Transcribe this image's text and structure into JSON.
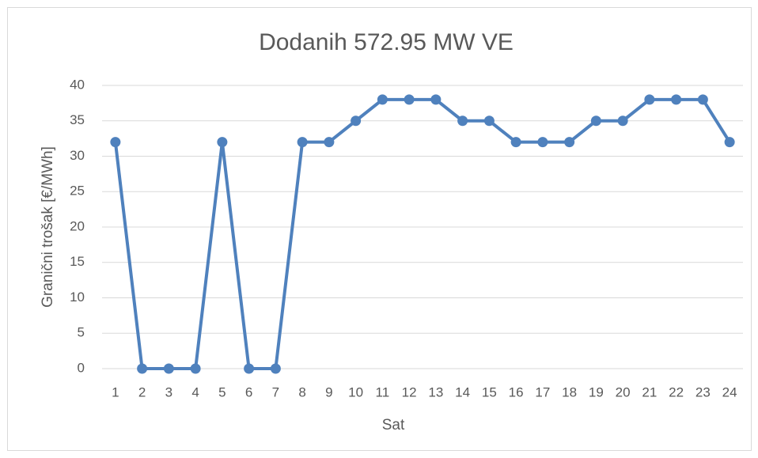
{
  "chart_data": {
    "type": "line",
    "title": "Dodanih 572.95 MW VE",
    "x_label": "Sat",
    "y_label": "Granični trošak [€/MWh]",
    "categories": [
      "1",
      "2",
      "3",
      "4",
      "5",
      "6",
      "7",
      "8",
      "9",
      "10",
      "11",
      "12",
      "13",
      "14",
      "15",
      "16",
      "17",
      "18",
      "19",
      "20",
      "21",
      "22",
      "23",
      "24"
    ],
    "series": [
      {
        "name": "Granični trošak",
        "color": "#4f81bd",
        "values": [
          32,
          0,
          0,
          0,
          32,
          0,
          0,
          32,
          32,
          35,
          38,
          38,
          38,
          35,
          35,
          32,
          32,
          32,
          35,
          35,
          38,
          38,
          38,
          32
        ]
      }
    ],
    "ylim": [
      0,
      40
    ],
    "yticks": [
      0,
      5,
      10,
      15,
      20,
      25,
      30,
      35,
      40
    ],
    "grid": true,
    "legend": false
  }
}
